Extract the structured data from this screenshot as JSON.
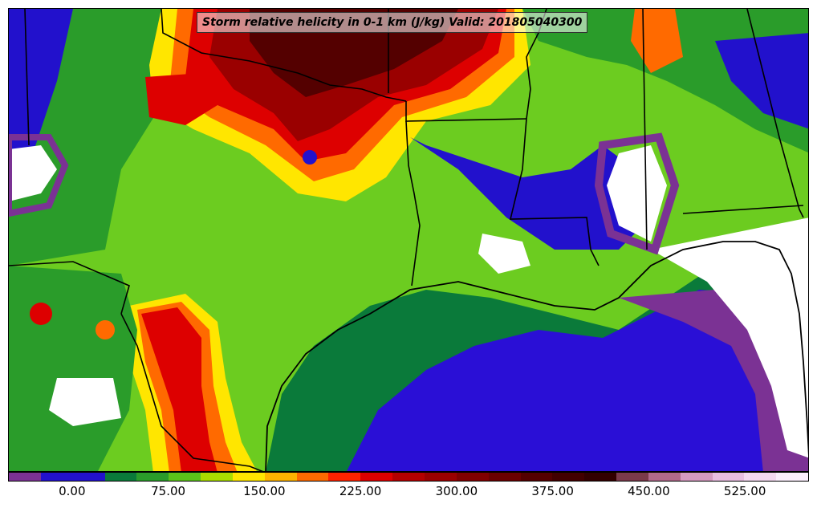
{
  "title": "Storm relative helicity in 0-1 km (J/kg) Valid: 201805040300",
  "colorbar": {
    "colors": [
      "#7b3294",
      "#2211cc",
      "#2211cc",
      "#0a7a3a",
      "#2a9c2a",
      "#5bc21a",
      "#aadd00",
      "#ffe600",
      "#ffb300",
      "#ff6a00",
      "#ff2200",
      "#dd0000",
      "#b40000",
      "#9a0000",
      "#800000",
      "#6a0000",
      "#540000",
      "#420000",
      "#320000",
      "#7a3a4a",
      "#b06a8a",
      "#d49ac0",
      "#e8bde0",
      "#f4d8f0",
      "#fbeefc"
    ],
    "tick_labels": [
      "0.00",
      "75.00",
      "150.00",
      "225.00",
      "300.00",
      "375.00",
      "450.00",
      "525.00"
    ]
  },
  "map": {
    "background": "#7fd11f",
    "ocean_color": "#2a0fd6"
  }
}
